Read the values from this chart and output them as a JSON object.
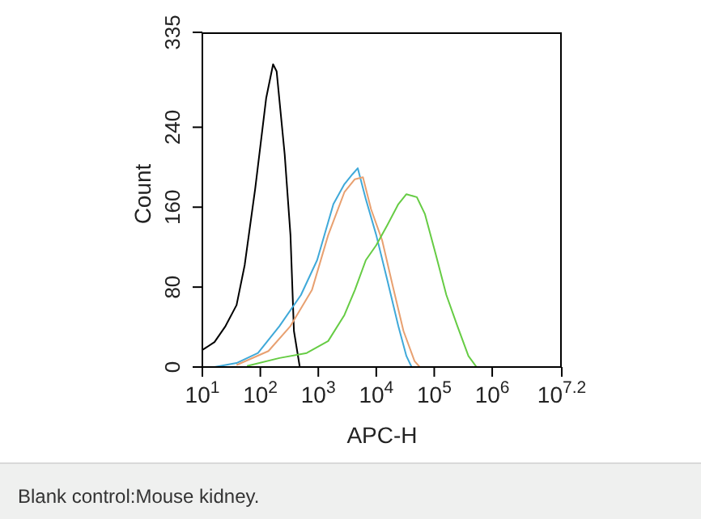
{
  "chart_data": {
    "type": "line",
    "xlabel": "APC-H",
    "ylabel": "Count",
    "log": "x",
    "grid": false,
    "marker": "none",
    "line_style": "solid",
    "xlim": [
      10,
      15848931.9
    ],
    "xticks": [
      {
        "value": 10,
        "label": "10$^{1}$"
      },
      {
        "value": 100,
        "label": "10$^{2}$"
      },
      {
        "value": 1000,
        "label": "10$^{3}$"
      },
      {
        "value": 10000,
        "label": "10$^{4}$"
      },
      {
        "value": 100000,
        "label": "10$^{5}$"
      },
      {
        "value": 1000000,
        "label": "10$^{6}$"
      },
      {
        "value": 15848931.9,
        "label": "10$^{7.2}$"
      }
    ],
    "ylim": [
      0,
      335
    ],
    "yticks": [
      0,
      80,
      160,
      240,
      335
    ],
    "series": [
      {
        "color": "#000000",
        "x": [
          10,
          16.2,
          25.1,
          38.9,
          53.7,
          81.3,
          126,
          166,
          191,
          263,
          331,
          380,
          479
        ],
        "values": [
          17,
          25,
          41,
          62,
          102,
          178,
          269,
          303,
          296,
          213,
          132,
          36,
          0
        ]
      },
      {
        "color": "#3fa9d9",
        "x": [
          16.2,
          38.9,
          91.2,
          214,
          501,
          955,
          1820,
          2820,
          3890,
          4790,
          6610,
          10000,
          15500,
          24000,
          33100,
          40700
        ],
        "values": [
          0,
          4,
          14,
          41,
          72,
          107,
          163,
          183,
          193,
          199,
          168,
          132,
          87,
          41,
          11,
          0
        ]
      },
      {
        "color": "#e8a070",
        "x": [
          38.9,
          138,
          331,
          776,
          1480,
          2820,
          4270,
          5890,
          8130,
          12600,
          19100,
          29500,
          45700,
          56200
        ],
        "values": [
          2,
          16,
          41,
          77,
          132,
          175,
          188,
          190,
          158,
          127,
          82,
          36,
          6,
          0
        ]
      },
      {
        "color": "#66cc44",
        "x": [
          58.9,
          214,
          631,
          1480,
          2820,
          4270,
          6610,
          10000,
          15500,
          24000,
          33100,
          50100,
          69200,
          107000,
          162000,
          251000,
          389000,
          537000
        ],
        "values": [
          1,
          9,
          14,
          26,
          52,
          77,
          107,
          122,
          142,
          163,
          173,
          170,
          153,
          112,
          72,
          41,
          11,
          0
        ]
      }
    ],
    "annotations": [
      "Blank control:Mouse kidney."
    ]
  }
}
